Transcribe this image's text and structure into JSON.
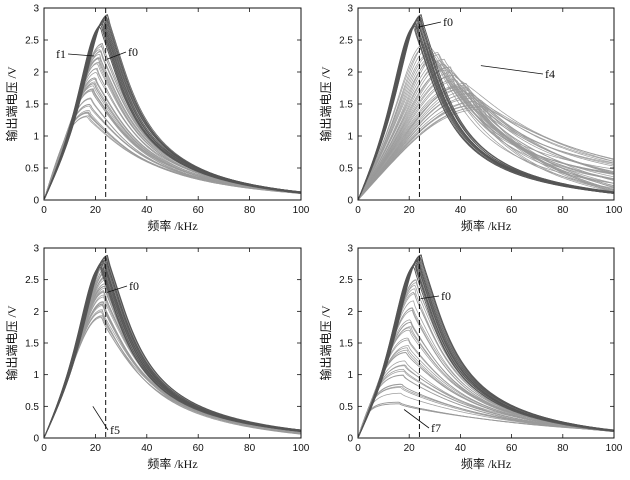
{
  "chart_data": [
    {
      "type": "line",
      "xlabel": "频率 /kHz",
      "ylabel": "输出端电压 /V",
      "xlim": [
        0,
        100
      ],
      "ylim": [
        0,
        3
      ],
      "xticks": [
        0,
        20,
        40,
        60,
        80,
        100
      ],
      "yticks": [
        0,
        0.5,
        1,
        1.5,
        2,
        2.5,
        3
      ],
      "xtick_labels": [
        "0",
        "20",
        "40",
        "60",
        "80",
        "100"
      ],
      "ytick_labels": [
        "0",
        "0.5",
        "1",
        "1.5",
        "2",
        "2.5",
        "3"
      ],
      "vline_x": 24,
      "series": [
        {
          "name": "f0",
          "color": "#555555",
          "count": 18,
          "peak_x": [
            22,
            25
          ],
          "peak_y": [
            2.7,
            2.9
          ],
          "tail_y_at_100": [
            0.1,
            0.13
          ]
        },
        {
          "name": "f1",
          "color": "#9a9a9a",
          "count": 40,
          "peak_x": [
            17,
            23
          ],
          "peak_y": [
            1.3,
            2.5
          ],
          "tail_y_at_100": [
            0.1,
            0.13
          ]
        }
      ],
      "annotations": [
        {
          "text": "f1",
          "series": "f1"
        },
        {
          "text": "f0",
          "series": "f0"
        }
      ]
    },
    {
      "type": "line",
      "xlabel": "频率 /kHz",
      "ylabel": "输出端电压 /V",
      "xlim": [
        0,
        100
      ],
      "ylim": [
        0,
        3
      ],
      "xticks": [
        0,
        20,
        40,
        60,
        80,
        100
      ],
      "yticks": [
        0,
        0.5,
        1,
        1.5,
        2,
        2.5,
        3
      ],
      "xtick_labels": [
        "0",
        "20",
        "40",
        "60",
        "80",
        "100"
      ],
      "ytick_labels": [
        "0",
        "0.5",
        "1",
        "1.5",
        "2",
        "2.5",
        "3"
      ],
      "vline_x": 24,
      "series": [
        {
          "name": "f0",
          "color": "#555555",
          "count": 18,
          "peak_x": [
            22,
            25
          ],
          "peak_y": [
            2.7,
            2.9
          ],
          "tail_y_at_100": [
            0.1,
            0.13
          ]
        },
        {
          "name": "f4",
          "color": "#9a9a9a",
          "count": 40,
          "peak_x": [
            26,
            50
          ],
          "peak_y": [
            1.4,
            2.45
          ],
          "tail_y_at_100": [
            0.12,
            0.65
          ]
        }
      ],
      "annotations": [
        {
          "text": "f0",
          "series": "f0"
        },
        {
          "text": "f4",
          "series": "f4"
        }
      ]
    },
    {
      "type": "line",
      "xlabel": "频率 /kHz",
      "ylabel": "输出端电压 /V",
      "xlim": [
        0,
        100
      ],
      "ylim": [
        0,
        3
      ],
      "xticks": [
        0,
        20,
        40,
        60,
        80,
        100
      ],
      "yticks": [
        0,
        0.5,
        1,
        1.5,
        2,
        2.5,
        3
      ],
      "xtick_labels": [
        "0",
        "20",
        "40",
        "60",
        "80",
        "100"
      ],
      "ytick_labels": [
        "0",
        "0.5",
        "1",
        "1.5",
        "2",
        "2.5",
        "3"
      ],
      "vline_x": 24,
      "series": [
        {
          "name": "f0",
          "color": "#555555",
          "count": 18,
          "peak_x": [
            22,
            25
          ],
          "peak_y": [
            2.7,
            2.9
          ],
          "tail_y_at_100": [
            0.1,
            0.13
          ]
        },
        {
          "name": "f5",
          "color": "#9a9a9a",
          "count": 40,
          "peak_x": [
            22.5,
            25
          ],
          "peak_y": [
            1.9,
            2.85
          ],
          "tail_y_at_100": [
            0.06,
            0.12
          ]
        }
      ],
      "annotations": [
        {
          "text": "f0",
          "series": "f0"
        },
        {
          "text": "f5",
          "series": "f5"
        }
      ]
    },
    {
      "type": "line",
      "xlabel": "频率 /kHz",
      "ylabel": "输出端电压 /V",
      "xlim": [
        0,
        100
      ],
      "ylim": [
        0,
        3
      ],
      "xticks": [
        0,
        20,
        40,
        60,
        80,
        100
      ],
      "yticks": [
        0,
        0.5,
        1,
        1.5,
        2,
        2.5,
        3
      ],
      "xtick_labels": [
        "0",
        "20",
        "40",
        "60",
        "80",
        "100"
      ],
      "ytick_labels": [
        "0",
        "0.5",
        "1",
        "1.5",
        "2",
        "2.5",
        "3"
      ],
      "vline_x": 24,
      "series": [
        {
          "name": "f0",
          "color": "#555555",
          "count": 18,
          "peak_x": [
            22,
            25
          ],
          "peak_y": [
            2.7,
            2.9
          ],
          "tail_y_at_100": [
            0.1,
            0.13
          ]
        },
        {
          "name": "f7",
          "color": "#9a9a9a",
          "count": 40,
          "peak_x": [
            16,
            23
          ],
          "peak_y": [
            0.45,
            2.5
          ],
          "tail_y_at_100": [
            0.1,
            0.13
          ]
        }
      ],
      "annotations": [
        {
          "text": "f0",
          "series": "f0"
        },
        {
          "text": "f7",
          "series": "f7"
        }
      ]
    }
  ]
}
